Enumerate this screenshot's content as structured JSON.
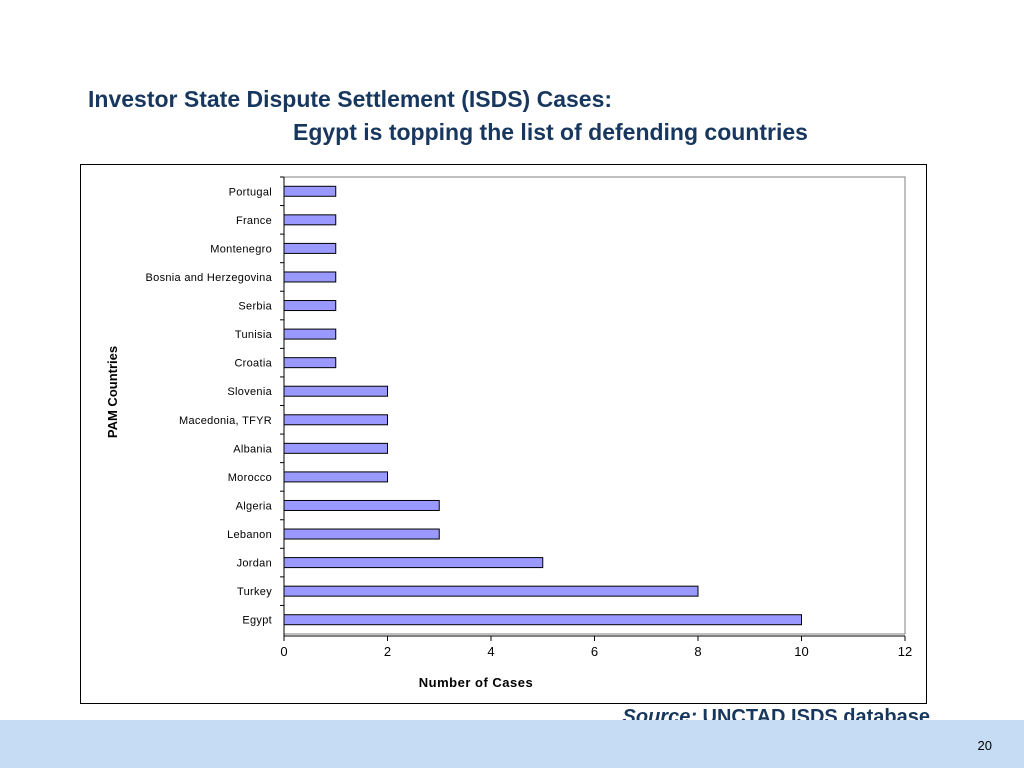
{
  "slide": {
    "title_line1": "Investor State Dispute Settlement (ISDS) Cases:",
    "title_line2": "Egypt is topping the list of defending countries",
    "source_label": "Source:",
    "source_text": " UNCTAD ISDS database",
    "page_number": "20"
  },
  "chart_data": {
    "type": "bar",
    "orientation": "horizontal",
    "categories": [
      "Portugal",
      "France",
      "Montenegro",
      "Bosnia and Herzegovina",
      "Serbia",
      "Tunisia",
      "Croatia",
      "Slovenia",
      "Macedonia, TFYR",
      "Albania",
      "Morocco",
      "Algeria",
      "Lebanon",
      "Jordan",
      "Turkey",
      "Egypt"
    ],
    "values": [
      1,
      1,
      1,
      1,
      1,
      1,
      1,
      2,
      2,
      2,
      2,
      3,
      3,
      5,
      8,
      10
    ],
    "xlabel": "Number of Cases",
    "ylabel": "PAM Countries",
    "xlim": [
      0,
      12
    ],
    "xticks": [
      0,
      2,
      4,
      6,
      8,
      10,
      12
    ],
    "grid": false,
    "legend": "none",
    "bar_color": "#9999ff"
  }
}
